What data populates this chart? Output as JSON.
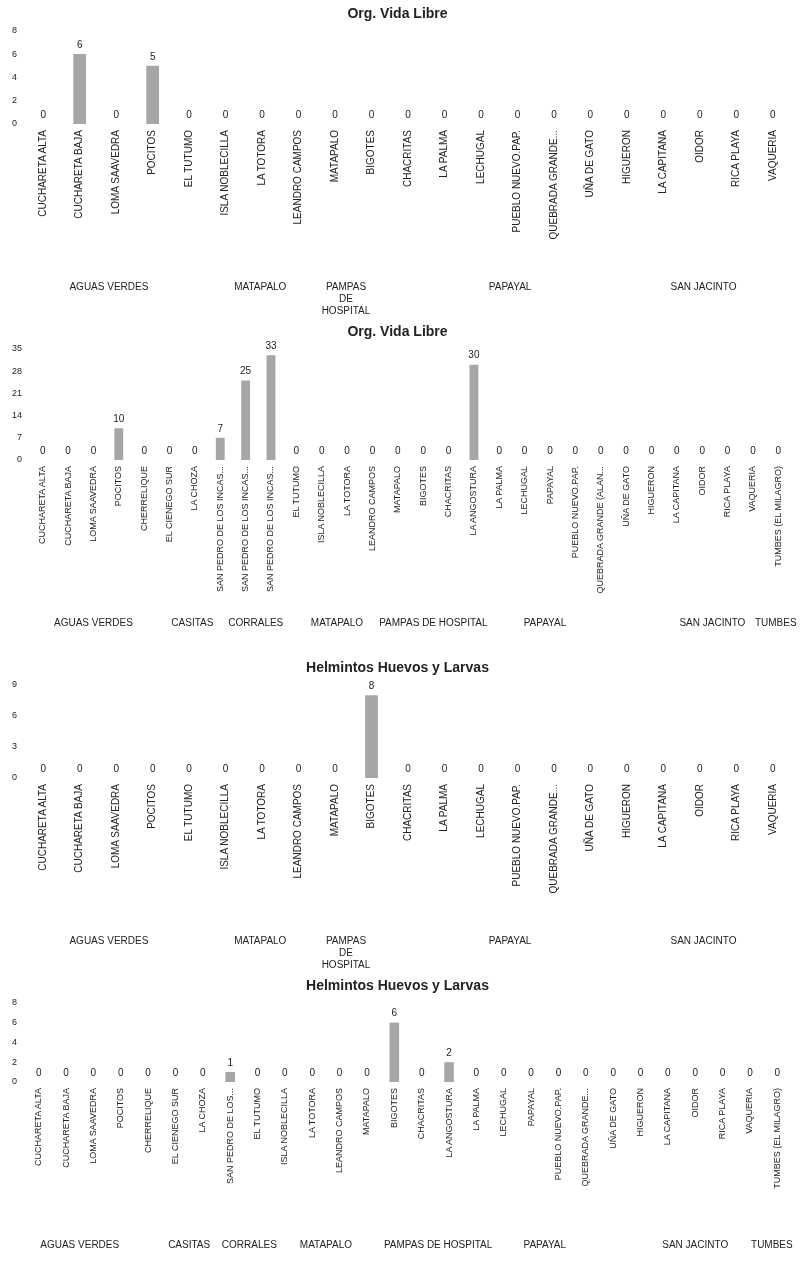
{
  "chart_data": [
    {
      "type": "bar",
      "title": "Org. Vida Libre",
      "categories": [
        "CUCHARETA ALTA",
        "CUCHARETA BAJA",
        "LOMA SAAVEDRA",
        "POCITOS",
        "EL TUTUMO",
        "ISLA NOBLECILLA",
        "LA TOTORA",
        "LEANDRO CAMPOS",
        "MATAPALO",
        "BIGOTES",
        "CHACRITAS",
        "LA PALMA",
        "LECHUGAL",
        "PUEBLO NUEVO.PAP.",
        "QUEBRADA GRANDE...",
        "UÑA DE GATO",
        "HIGUERON",
        "LA CAPITANA",
        "OIDOR",
        "RICA PLAYA",
        "VAQUERIA"
      ],
      "values": [
        0,
        6,
        0,
        5,
        0,
        0,
        0,
        0,
        0,
        0,
        0,
        0,
        0,
        0,
        0,
        0,
        0,
        0,
        0,
        0,
        0
      ],
      "color": "#a6a6a6",
      "ylim": [
        0,
        8
      ],
      "yticks": [
        0,
        2,
        4,
        6,
        8
      ],
      "grid": false,
      "legend": false,
      "data_labels": true,
      "annotations": [
        "AGUAS VERDES",
        "MATAPALO",
        "PAMPAS DE HOSPITAL",
        "PAPAYAL",
        "SAN JACINTO"
      ]
    },
    {
      "type": "bar",
      "title": "Org. Vida Libre",
      "categories": [
        "CUCHARETA ALTA",
        "CUCHARETA BAJA",
        "LOMA SAAVEDRA",
        "POCITOS",
        "CHERRELIQUE",
        "EL CIENEGO SUR",
        "LA CHOZA",
        "SAN PEDRO DE LOS INCAS...",
        "SAN PEDRO DE LOS INCAS...",
        "SAN PEDRO DE LOS INCAS...",
        "EL TUTUMO",
        "ISLA NOBLECILLA",
        "LA TOTORA",
        "LEANDRO CAMPOS",
        "MATAPALO",
        "BIGOTES",
        "CHACRITAS",
        "LA ANGOSTURA",
        "LA PALMA",
        "LECHUGAL",
        "PAPAYAL",
        "PUEBLO NUEVO.PAP.",
        "QUEBRADA GRANDE (ALAN...",
        "UÑA DE GATO",
        "HIGUERON",
        "LA CAPITANA",
        "OIDOR",
        "RICA PLAYA",
        "VAQUERIA",
        "TUMBES (EL MILAGRO)"
      ],
      "values": [
        0,
        0,
        0,
        10,
        0,
        0,
        0,
        7,
        25,
        33,
        0,
        0,
        0,
        0,
        0,
        0,
        0,
        30,
        0,
        0,
        0,
        0,
        0,
        0,
        0,
        0,
        0,
        0,
        0,
        0
      ],
      "color": "#a6a6a6",
      "ylim": [
        0,
        35
      ],
      "yticks": [
        0,
        7,
        14,
        21,
        28,
        35
      ],
      "grid": false,
      "legend": false,
      "data_labels": true,
      "annotations": [
        "AGUAS VERDES",
        "CASITAS",
        "CORRALES",
        "MATAPALO",
        "PAMPAS DE HOSPITAL",
        "PAPAYAL",
        "SAN JACINTO",
        "TUMBES"
      ]
    },
    {
      "type": "bar",
      "title": "Helmintos Huevos y Larvas",
      "categories": [
        "CUCHARETA ALTA",
        "CUCHARETA BAJA",
        "LOMA SAAVEDRA",
        "POCITOS",
        "EL TUTUMO",
        "ISLA NOBLECILLA",
        "LA TOTORA",
        "LEANDRO CAMPOS",
        "MATAPALO",
        "BIGOTES",
        "CHACRITAS",
        "LA PALMA",
        "LECHUGAL",
        "PUEBLO NUEVO.PAP.",
        "QUEBRADA GRANDE...",
        "UÑA DE GATO",
        "HIGUERON",
        "LA CAPITANA",
        "OIDOR",
        "RICA PLAYA",
        "VAQUERIA"
      ],
      "values": [
        0,
        0,
        0,
        0,
        0,
        0,
        0,
        0,
        0,
        8,
        0,
        0,
        0,
        0,
        0,
        0,
        0,
        0,
        0,
        0,
        0
      ],
      "color": "#a6a6a6",
      "ylim": [
        0,
        9
      ],
      "yticks": [
        0,
        3,
        6,
        9
      ],
      "grid": false,
      "legend": false,
      "data_labels": true,
      "annotations": [
        "AGUAS VERDES",
        "MATAPALO",
        "PAMPAS DE HOSPITAL",
        "PAPAYAL",
        "SAN JACINTO"
      ]
    },
    {
      "type": "bar",
      "title": "Helmintos Huevos y Larvas",
      "categories": [
        "CUCHARETA ALTA",
        "CUCHARETA BAJA",
        "LOMA SAAVEDRA",
        "POCITOS",
        "CHERRELIQUE",
        "EL CIENEGO SUR",
        "LA CHOZA",
        "SAN PEDRO DE LOS...",
        "EL TUTUMO",
        "ISLA NOBLECILLA",
        "LA TOTORA",
        "LEANDRO CAMPOS",
        "MATAPALO",
        "BIGOTES",
        "CHACRITAS",
        "LA ANGOSTURA",
        "LA PALMA",
        "LECHUGAL",
        "PAPAYAL",
        "PUEBLO NUEVO.PAP.",
        "QUEBRADA GRANDE...",
        "UÑA DE GATO",
        "HIGUERON",
        "LA CAPITANA",
        "OIDOR",
        "RICA PLAYA",
        "VAQUERIA",
        "TUMBES (EL MILAGRO)"
      ],
      "values": [
        0,
        0,
        0,
        0,
        0,
        0,
        0,
        1,
        0,
        0,
        0,
        0,
        0,
        6,
        0,
        2,
        0,
        0,
        0,
        0,
        0,
        0,
        0,
        0,
        0,
        0,
        0,
        0
      ],
      "color": "#a6a6a6",
      "ylim": [
        0,
        8
      ],
      "yticks": [
        0,
        2,
        4,
        6,
        8
      ],
      "grid": false,
      "legend": false,
      "data_labels": true,
      "annotations": [
        "AGUAS VERDES",
        "CASITAS",
        "CORRALES",
        "MATAPALO",
        "PAMPAS DE HOSPITAL",
        "PAPAYAL",
        "SAN JACINTO",
        "TUMBES"
      ]
    }
  ]
}
